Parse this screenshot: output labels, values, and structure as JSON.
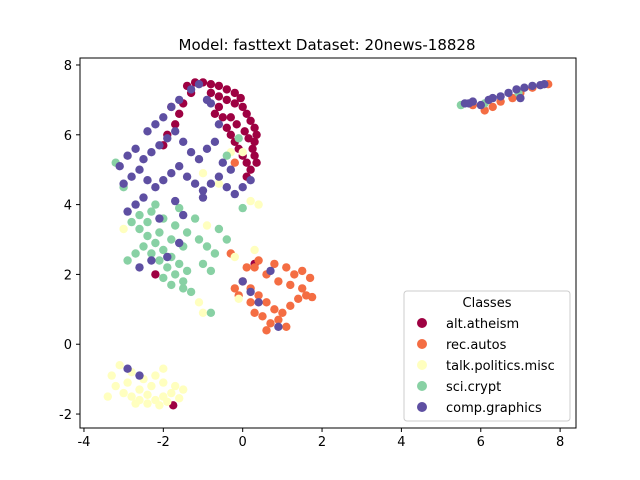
{
  "chart_data": {
    "type": "scatter",
    "title": "Model: fasttext       Dataset: 20news-18828",
    "xlabel": "",
    "ylabel": "",
    "xlim": [
      -4.1,
      8.4
    ],
    "ylim": [
      -2.4,
      8.2
    ],
    "xticks": [
      -4,
      -2,
      0,
      2,
      4,
      6,
      8
    ],
    "yticks": [
      -2,
      0,
      2,
      4,
      6,
      8
    ],
    "grid": false,
    "legend": {
      "title": "Classes",
      "placement": "lower-right"
    },
    "series": [
      {
        "name": "alt.atheism",
        "color": "#9e0142",
        "points": [
          [
            -1.4,
            7.4
          ],
          [
            -1.2,
            7.5
          ],
          [
            -1.0,
            7.5
          ],
          [
            -0.8,
            7.45
          ],
          [
            -0.6,
            7.4
          ],
          [
            -0.4,
            7.3
          ],
          [
            -0.2,
            7.2
          ],
          [
            -0.05,
            7.05
          ],
          [
            -0.8,
            7.2
          ],
          [
            -0.6,
            7.1
          ],
          [
            -0.4,
            7.0
          ],
          [
            -0.2,
            6.9
          ],
          [
            0.0,
            6.8
          ],
          [
            0.1,
            6.6
          ],
          [
            0.2,
            6.4
          ],
          [
            0.3,
            6.2
          ],
          [
            0.35,
            6.0
          ],
          [
            0.3,
            5.8
          ],
          [
            0.25,
            5.6
          ],
          [
            0.3,
            5.4
          ],
          [
            0.35,
            5.2
          ],
          [
            0.2,
            5.0
          ],
          [
            0.1,
            4.8
          ],
          [
            -0.6,
            6.8
          ],
          [
            -0.5,
            6.5
          ],
          [
            -0.4,
            6.2
          ],
          [
            -0.3,
            6.0
          ],
          [
            -0.2,
            5.8
          ],
          [
            -0.1,
            5.6
          ],
          [
            0.0,
            5.4
          ],
          [
            0.1,
            5.2
          ],
          [
            -1.5,
            6.9
          ],
          [
            -1.6,
            6.6
          ],
          [
            -1.7,
            6.3
          ],
          [
            -1.9,
            6.0
          ],
          [
            -2.0,
            5.7
          ],
          [
            -1.3,
            7.2
          ],
          [
            -1.8,
            6.8
          ],
          [
            -0.3,
            6.5
          ],
          [
            0.05,
            6.1
          ],
          [
            -0.15,
            6.3
          ],
          [
            -0.7,
            6.6
          ],
          [
            0.15,
            5.9
          ],
          [
            -2.2,
            2.0
          ],
          [
            -1.75,
            -1.75
          ],
          [
            0.3,
            2.3
          ]
        ]
      },
      {
        "name": "rec.autos",
        "color": "#f46d43",
        "points": [
          [
            0.0,
            1.8
          ],
          [
            0.2,
            1.6
          ],
          [
            0.4,
            1.4
          ],
          [
            0.6,
            1.2
          ],
          [
            0.8,
            1.0
          ],
          [
            1.0,
            0.9
          ],
          [
            1.2,
            1.1
          ],
          [
            1.4,
            1.3
          ],
          [
            1.6,
            1.4
          ],
          [
            1.75,
            1.35
          ],
          [
            0.3,
            2.2
          ],
          [
            0.6,
            2.0
          ],
          [
            0.9,
            1.8
          ],
          [
            1.2,
            1.7
          ],
          [
            1.5,
            1.6
          ],
          [
            0.5,
            0.8
          ],
          [
            0.7,
            0.6
          ],
          [
            0.9,
            0.7
          ],
          [
            1.1,
            0.5
          ],
          [
            0.2,
            1.2
          ],
          [
            -0.1,
            1.4
          ],
          [
            -0.2,
            1.6
          ],
          [
            0.4,
            2.4
          ],
          [
            0.8,
            2.3
          ],
          [
            1.1,
            2.2
          ],
          [
            1.3,
            2.0
          ],
          [
            0.6,
            0.4
          ],
          [
            0.3,
            0.9
          ],
          [
            -0.3,
            2.6
          ],
          [
            0.1,
            2.2
          ],
          [
            1.5,
            2.1
          ],
          [
            1.7,
            1.9
          ],
          [
            6.3,
            6.8
          ],
          [
            6.5,
            6.95
          ],
          [
            6.8,
            7.05
          ],
          [
            7.0,
            7.2
          ],
          [
            7.3,
            7.35
          ],
          [
            7.7,
            7.45
          ],
          [
            5.8,
            6.85
          ],
          [
            6.1,
            6.7
          ],
          [
            -0.2,
            5.2
          ]
        ]
      },
      {
        "name": "talk.politics.misc",
        "color": "#ffffbf",
        "points": [
          [
            -3.0,
            -1.4
          ],
          [
            -2.8,
            -1.5
          ],
          [
            -2.6,
            -1.6
          ],
          [
            -2.4,
            -1.7
          ],
          [
            -2.2,
            -1.6
          ],
          [
            -2.0,
            -1.5
          ],
          [
            -1.8,
            -1.4
          ],
          [
            -3.2,
            -1.2
          ],
          [
            -2.9,
            -1.1
          ],
          [
            -2.6,
            -1.3
          ],
          [
            -2.3,
            -1.2
          ],
          [
            -2.0,
            -1.1
          ],
          [
            -1.7,
            -1.2
          ],
          [
            -2.5,
            -1.0
          ],
          [
            -2.2,
            -0.9
          ],
          [
            -2.8,
            -0.8
          ],
          [
            -3.1,
            -0.6
          ],
          [
            -2.4,
            -1.45
          ],
          [
            -1.9,
            -1.65
          ],
          [
            -2.7,
            -1.7
          ],
          [
            -3.4,
            -1.5
          ],
          [
            -2.0,
            -0.7
          ],
          [
            -3.3,
            -0.9
          ],
          [
            -2.1,
            -1.75
          ],
          [
            -1.6,
            -1.55
          ],
          [
            -1.5,
            -1.3
          ],
          [
            -1.0,
            4.9
          ],
          [
            -0.6,
            4.6
          ],
          [
            -0.3,
            5.5
          ],
          [
            0.2,
            4.1
          ],
          [
            0.4,
            4.0
          ],
          [
            -0.2,
            2.5
          ],
          [
            -0.1,
            1.3
          ],
          [
            -1.1,
            1.2
          ],
          [
            -1.0,
            0.9
          ],
          [
            0.0,
            5.5
          ],
          [
            0.3,
            2.7
          ],
          [
            -0.9,
            3.4
          ],
          [
            -3.0,
            3.3
          ]
        ]
      },
      {
        "name": "sci.crypt",
        "color": "#88d1a4",
        "points": [
          [
            -2.8,
            3.5
          ],
          [
            -2.6,
            3.3
          ],
          [
            -2.4,
            3.1
          ],
          [
            -2.2,
            2.9
          ],
          [
            -2.0,
            2.7
          ],
          [
            -1.8,
            2.5
          ],
          [
            -1.6,
            2.3
          ],
          [
            -1.4,
            2.1
          ],
          [
            -2.5,
            2.8
          ],
          [
            -2.3,
            2.6
          ],
          [
            -2.1,
            2.4
          ],
          [
            -1.9,
            2.2
          ],
          [
            -1.7,
            2.0
          ],
          [
            -1.5,
            1.8
          ],
          [
            -1.5,
            1.6
          ],
          [
            -1.3,
            1.5
          ],
          [
            -2.7,
            2.6
          ],
          [
            -2.9,
            2.4
          ],
          [
            -2.6,
            3.7
          ],
          [
            -2.3,
            3.8
          ],
          [
            -2.0,
            3.6
          ],
          [
            -1.7,
            3.4
          ],
          [
            -1.4,
            3.2
          ],
          [
            -1.1,
            3.0
          ],
          [
            -0.9,
            2.8
          ],
          [
            -0.7,
            2.6
          ],
          [
            -1.0,
            2.3
          ],
          [
            -0.8,
            2.1
          ],
          [
            -2.4,
            3.5
          ],
          [
            -2.1,
            3.2
          ],
          [
            -1.8,
            3.0
          ],
          [
            -1.5,
            2.8
          ],
          [
            -2.2,
            4.0
          ],
          [
            -1.6,
            3.9
          ],
          [
            -1.2,
            3.6
          ],
          [
            -0.6,
            3.3
          ],
          [
            -0.4,
            3.0
          ],
          [
            -2.0,
            1.9
          ],
          [
            -1.8,
            1.7
          ],
          [
            -0.8,
            0.9
          ],
          [
            -3.2,
            5.2
          ],
          [
            -3.0,
            4.5
          ],
          [
            -0.1,
            5.9
          ],
          [
            -0.4,
            5.4
          ],
          [
            0.0,
            3.9
          ],
          [
            5.5,
            6.85
          ],
          [
            6.1,
            6.9
          ],
          [
            6.95,
            7.2
          ]
        ]
      },
      {
        "name": "comp.graphics",
        "color": "#5e4fa2",
        "points": [
          [
            -3.0,
            4.6
          ],
          [
            -2.8,
            4.8
          ],
          [
            -2.6,
            5.0
          ],
          [
            -2.4,
            4.7
          ],
          [
            -2.2,
            4.5
          ],
          [
            -2.0,
            4.7
          ],
          [
            -1.8,
            4.9
          ],
          [
            -1.6,
            5.1
          ],
          [
            -1.4,
            4.8
          ],
          [
            -1.2,
            4.6
          ],
          [
            -1.0,
            4.4
          ],
          [
            -0.8,
            4.6
          ],
          [
            -0.6,
            4.8
          ],
          [
            -0.4,
            4.5
          ],
          [
            -0.2,
            4.3
          ],
          [
            0.0,
            4.5
          ],
          [
            0.2,
            4.7
          ],
          [
            -3.1,
            5.1
          ],
          [
            -2.9,
            5.4
          ],
          [
            -2.7,
            5.6
          ],
          [
            -2.5,
            5.3
          ],
          [
            -2.3,
            5.5
          ],
          [
            -2.1,
            5.7
          ],
          [
            -1.9,
            5.9
          ],
          [
            -1.7,
            6.1
          ],
          [
            -1.5,
            5.8
          ],
          [
            -1.3,
            5.5
          ],
          [
            -1.1,
            5.3
          ],
          [
            -0.9,
            5.6
          ],
          [
            -0.7,
            5.8
          ],
          [
            -0.5,
            5.2
          ],
          [
            -0.3,
            5.0
          ],
          [
            -2.4,
            6.1
          ],
          [
            -2.2,
            6.3
          ],
          [
            -2.0,
            6.5
          ],
          [
            -1.8,
            6.8
          ],
          [
            -1.6,
            7.0
          ],
          [
            -1.3,
            7.3
          ],
          [
            -1.1,
            7.45
          ],
          [
            -0.9,
            7.0
          ],
          [
            -0.6,
            6.3
          ],
          [
            -0.8,
            6.9
          ],
          [
            -2.7,
            4.0
          ],
          [
            -2.9,
            3.8
          ],
          [
            -2.5,
            4.2
          ],
          [
            -1.7,
            4.1
          ],
          [
            -1.5,
            3.7
          ],
          [
            -2.1,
            3.6
          ],
          [
            -2.3,
            2.4
          ],
          [
            -2.6,
            2.2
          ],
          [
            -1.9,
            2.5
          ],
          [
            -1.6,
            2.9
          ],
          [
            0.0,
            1.8
          ],
          [
            0.2,
            1.5
          ],
          [
            0.4,
            1.2
          ],
          [
            0.7,
            2.1
          ],
          [
            0.9,
            0.5
          ],
          [
            -2.9,
            -0.7
          ],
          [
            -2.6,
            -0.9
          ],
          [
            -1.0,
            4.2
          ],
          [
            5.6,
            6.9
          ],
          [
            5.8,
            6.95
          ],
          [
            6.2,
            7.0
          ],
          [
            6.5,
            7.1
          ],
          [
            6.7,
            7.2
          ],
          [
            6.9,
            7.3
          ],
          [
            7.1,
            7.35
          ],
          [
            7.3,
            7.4
          ],
          [
            7.5,
            7.42
          ],
          [
            6.0,
            6.85
          ],
          [
            7.0,
            7.05
          ],
          [
            7.6,
            7.45
          ],
          [
            6.3,
            7.05
          ],
          [
            5.7,
            6.9
          ]
        ]
      }
    ]
  }
}
